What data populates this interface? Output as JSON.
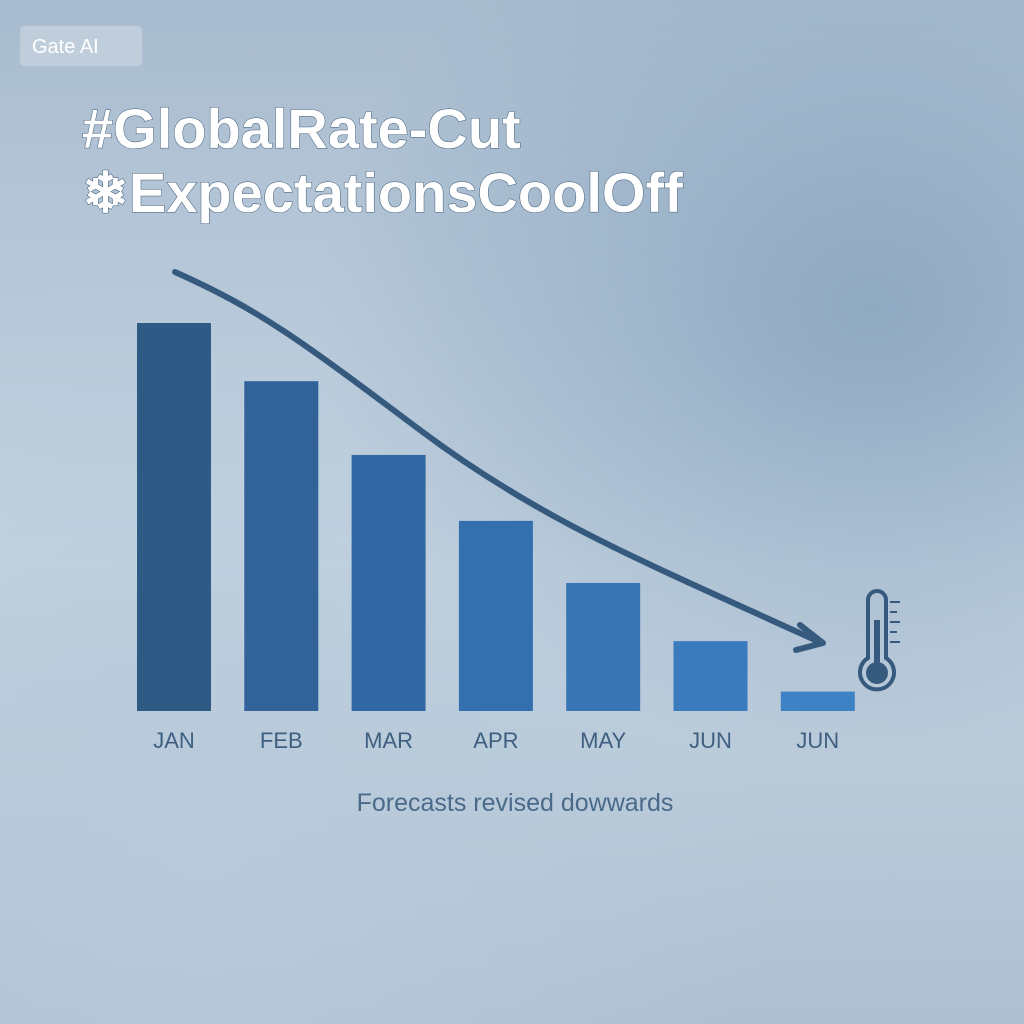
{
  "watermark": "Gate AI",
  "chart_data": {
    "type": "bar",
    "title": [
      "#GlobalRate-Cut",
      "❄ExpectationsCoolOff"
    ],
    "categories": [
      "JAN",
      "FEB",
      "MAR",
      "APR",
      "MAY",
      "JUN",
      "JUN"
    ],
    "values": [
      100,
      85,
      66,
      49,
      33,
      18,
      5
    ],
    "colors": [
      "#2f5a85",
      "#31639a",
      "#3268a3",
      "#3470ae",
      "#3775b5",
      "#3a7bbd",
      "#3e82c6"
    ],
    "caption": "Forecasts revised dowwards"
  }
}
